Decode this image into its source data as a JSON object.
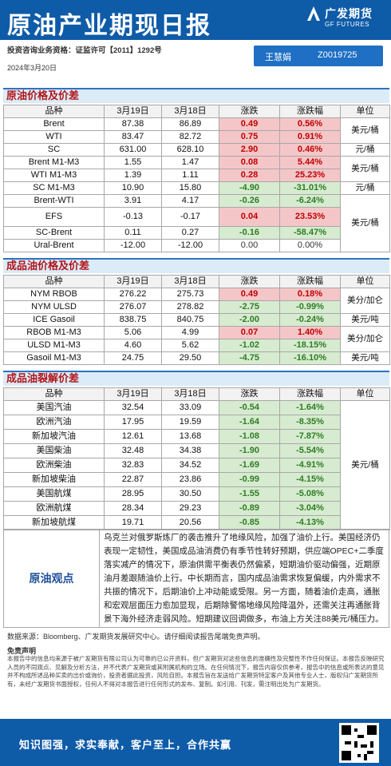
{
  "header": {
    "title": "原油产业期现日报",
    "logo_cn": "广发期货",
    "logo_en": "GF FUTURES",
    "license": "投资咨询业务资格：证监许可【2011】1292号",
    "date": "2024年3月20日",
    "analyst_name": "王慧娟",
    "analyst_id": "Z0019725"
  },
  "sections": {
    "crude": "原油价格及价差",
    "products": "成品油价格及价差",
    "cracks": "成品油裂解价差"
  },
  "columns": [
    "品种",
    "3月19日",
    "3月18日",
    "涨跌",
    "涨跌幅",
    "单位"
  ],
  "crude_rows": [
    {
      "name": "Brent",
      "d1": "87.38",
      "d2": "86.89",
      "chg": "0.49",
      "pct": "0.56%",
      "s": "pos"
    },
    {
      "name": "WTI",
      "d1": "83.47",
      "d2": "82.72",
      "chg": "0.75",
      "pct": "0.91%",
      "s": "pos"
    },
    {
      "name": "SC",
      "d1": "631.00",
      "d2": "628.10",
      "chg": "2.90",
      "pct": "0.46%",
      "s": "pos"
    },
    {
      "name": "Brent  M1-M3",
      "d1": "1.55",
      "d2": "1.47",
      "chg": "0.08",
      "pct": "5.44%",
      "s": "pos"
    },
    {
      "name": "WTI  M1-M3",
      "d1": "1.39",
      "d2": "1.11",
      "chg": "0.28",
      "pct": "25.23%",
      "s": "pos"
    },
    {
      "name": "SC  M1-M3",
      "d1": "10.90",
      "d2": "15.80",
      "chg": "-4.90",
      "pct": "-31.01%",
      "s": "neg"
    },
    {
      "name": "Brent-WTI",
      "d1": "3.91",
      "d2": "4.17",
      "chg": "-0.26",
      "pct": "-6.24%",
      "s": "neg"
    },
    {
      "name": "EFS",
      "d1": "-0.13",
      "d2": "-0.17",
      "chg": "0.04",
      "pct": "23.53%",
      "s": "pos"
    },
    {
      "name": "SC-Brent",
      "d1": "0.11",
      "d2": "0.27",
      "chg": "-0.16",
      "pct": "-58.47%",
      "s": "neg"
    },
    {
      "name": "Ural-Brent",
      "d1": "-12.00",
      "d2": "-12.00",
      "chg": "0.00",
      "pct": "0.00%",
      "s": "zero"
    }
  ],
  "crude_units": [
    "美元/桶",
    "元/桶",
    "美元/桶",
    "元/桶",
    "美元/桶"
  ],
  "product_rows": [
    {
      "name": "NYM RBOB",
      "d1": "276.22",
      "d2": "275.73",
      "chg": "0.49",
      "pct": "0.18%",
      "s": "pos"
    },
    {
      "name": "NYM ULSD",
      "d1": "276.07",
      "d2": "278.82",
      "chg": "-2.75",
      "pct": "-0.99%",
      "s": "neg"
    },
    {
      "name": "ICE Gasoil",
      "d1": "838.75",
      "d2": "840.75",
      "chg": "-2.00",
      "pct": "-0.24%",
      "s": "neg"
    },
    {
      "name": "RBOB  M1-M3",
      "d1": "5.06",
      "d2": "4.99",
      "chg": "0.07",
      "pct": "1.40%",
      "s": "pos"
    },
    {
      "name": "ULSD  M1-M3",
      "d1": "4.60",
      "d2": "5.62",
      "chg": "-1.02",
      "pct": "-18.15%",
      "s": "neg"
    },
    {
      "name": "Gasoil  M1-M3",
      "d1": "24.75",
      "d2": "29.50",
      "chg": "-4.75",
      "pct": "-16.10%",
      "s": "neg"
    }
  ],
  "product_units": [
    "美分/加仑",
    "美元/吨",
    "美分/加仑",
    "美元/吨"
  ],
  "crack_rows": [
    {
      "name": "美国汽油",
      "d1": "32.54",
      "d2": "33.09",
      "chg": "-0.54",
      "pct": "-1.64%",
      "s": "neg"
    },
    {
      "name": "欧洲汽油",
      "d1": "17.95",
      "d2": "19.59",
      "chg": "-1.64",
      "pct": "-8.35%",
      "s": "neg"
    },
    {
      "name": "新加坡汽油",
      "d1": "12.61",
      "d2": "13.68",
      "chg": "-1.08",
      "pct": "-7.87%",
      "s": "neg"
    },
    {
      "name": "美国柴油",
      "d1": "32.48",
      "d2": "34.38",
      "chg": "-1.90",
      "pct": "-5.54%",
      "s": "neg"
    },
    {
      "name": "欧洲柴油",
      "d1": "32.83",
      "d2": "34.52",
      "chg": "-1.69",
      "pct": "-4.91%",
      "s": "neg"
    },
    {
      "name": "新加坡柴油",
      "d1": "22.87",
      "d2": "23.86",
      "chg": "-0.99",
      "pct": "-4.15%",
      "s": "neg"
    },
    {
      "name": "美国航煤",
      "d1": "28.95",
      "d2": "30.50",
      "chg": "-1.55",
      "pct": "-5.08%",
      "s": "neg"
    },
    {
      "name": "欧洲航煤",
      "d1": "28.34",
      "d2": "29.23",
      "chg": "-0.89",
      "pct": "-3.04%",
      "s": "neg"
    },
    {
      "name": "新加坡航煤",
      "d1": "19.71",
      "d2": "20.56",
      "chg": "-0.85",
      "pct": "-4.13%",
      "s": "neg"
    }
  ],
  "crack_unit": "美元/桶",
  "view": {
    "label": "原油观点",
    "text": "乌克兰对俄罗斯炼厂的袭击推升了地缘风险，加强了油价上行。美国经济仍表现一定韧性，美国成品油消费仍有季节性转好预期，供应端OPEC+二季度落实减产的情况下，原油供需平衡表仍然偏紧，短期油价驱动偏强，近期原油月差跟随油价上行。中长期而言，国内成品油需求恢复偏缓，内外需求不共振的情况下，后期油价上冲动能或受限。另一方面，随着油价走高，通胀和宏观层面压力愈加显现，后期除警惕地缘风险降温外，还需关注再通胀背景下海外经济走弱风险。短期建议回调做多，布油上方关注88美元/桶压力。"
  },
  "source": "数据来源：Bloomberg、广发期货发展研究中心。请仔细阅读报告尾端免责声明。",
  "disclaimer_title": "免责声明",
  "disclaimer": "本报告中的信息均来源于被广发期货有限公司认为可靠的已公开资料，但广发期货对这些信息的准确性及完整性不作任何保证。本报告反映研究人员的不同观点、见解及分析方法，并不代表广发期货或其附属机构的立场。在任何情况下，报告内容仅供参考，报告中的信息或所表达的意见并不构成所述品种买卖的出价或询价，投资者据此投资，风险自担。本报告旨在发送给广发期货特定客户及其他专业人士，版权归广发期货所有，未经广发期货书面授权，任何人不得对本报告进行任何形式的发布、复制。如引用、刊发，需注明出处为广发期货。",
  "footer_slogan": "知识图强，求实奉献，客户至上，合作共赢"
}
